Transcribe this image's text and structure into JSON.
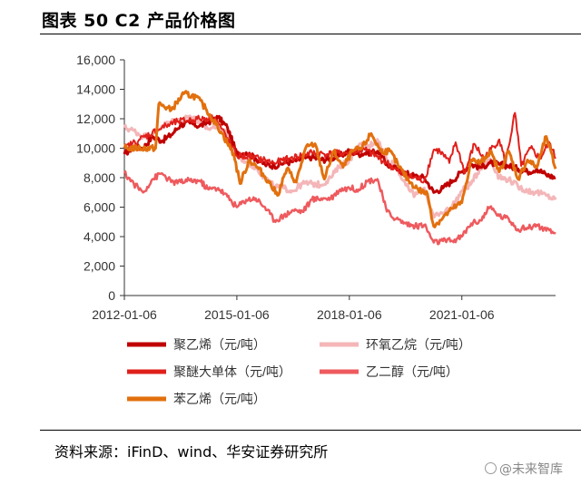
{
  "header": {
    "title": "图表 50 C2 产品价格图"
  },
  "footer": {
    "source": "资料来源：iFinD、wind、华安证券研究所",
    "watermark": "@未来智库"
  },
  "chart_data": {
    "type": "line",
    "title": "图表 50 C2 产品价格图",
    "xlabel": "",
    "ylabel": "",
    "ylim": [
      0,
      16000
    ],
    "yticks": [
      "0",
      "2,000",
      "4,000",
      "6,000",
      "8,000",
      "10,000",
      "12,000",
      "14,000",
      "16,000"
    ],
    "xlim": [
      "2012-01",
      "2023-07"
    ],
    "xticks": [
      "2012-01-06",
      "2015-01-06",
      "2018-01-06",
      "2021-01-06"
    ],
    "grid": false,
    "legend": "bottom",
    "colors": {
      "聚乙烯": "#C00000",
      "环氧乙烷": "#F4B6B8",
      "聚醚大单体": "#E0201B",
      "乙二醇": "#EE5A5E",
      "苯乙烯": "#E2700E"
    },
    "series": [
      {
        "name": "聚乙烯（元/吨）",
        "color": "#C00000",
        "width": 3,
        "points": [
          [
            "2012-01",
            9600
          ],
          [
            "2012-04",
            10100
          ],
          [
            "2012-07",
            10000
          ],
          [
            "2012-10",
            10800
          ],
          [
            "2013-01",
            10500
          ],
          [
            "2013-04",
            10900
          ],
          [
            "2013-07",
            11600
          ],
          [
            "2013-10",
            11700
          ],
          [
            "2014-01",
            11500
          ],
          [
            "2014-04",
            11800
          ],
          [
            "2014-07",
            12100
          ],
          [
            "2014-10",
            11400
          ],
          [
            "2015-01",
            9600
          ],
          [
            "2015-04",
            9700
          ],
          [
            "2015-07",
            9300
          ],
          [
            "2015-10",
            8900
          ],
          [
            "2016-01",
            8800
          ],
          [
            "2016-04",
            9000
          ],
          [
            "2016-07",
            9100
          ],
          [
            "2016-10",
            9300
          ],
          [
            "2017-01",
            9400
          ],
          [
            "2017-04",
            9200
          ],
          [
            "2017-07",
            9300
          ],
          [
            "2017-10",
            9500
          ],
          [
            "2018-01",
            9800
          ],
          [
            "2018-04",
            9600
          ],
          [
            "2018-07",
            9700
          ],
          [
            "2018-10",
            9800
          ],
          [
            "2019-01",
            8900
          ],
          [
            "2019-04",
            8600
          ],
          [
            "2019-07",
            8300
          ],
          [
            "2019-10",
            8100
          ],
          [
            "2020-01",
            8000
          ],
          [
            "2020-04",
            7000
          ],
          [
            "2020-07",
            7300
          ],
          [
            "2020-10",
            7800
          ],
          [
            "2021-01",
            8400
          ],
          [
            "2021-04",
            8900
          ],
          [
            "2021-07",
            8700
          ],
          [
            "2021-10",
            9000
          ],
          [
            "2022-01",
            8900
          ],
          [
            "2022-04",
            8800
          ],
          [
            "2022-07",
            8600
          ],
          [
            "2022-10",
            8400
          ],
          [
            "2023-01",
            8600
          ],
          [
            "2023-04",
            8200
          ],
          [
            "2023-07",
            8000
          ]
        ]
      },
      {
        "name": "环氧乙烷（元/吨）",
        "color": "#F4B6B8",
        "width": 3,
        "points": [
          [
            "2012-01",
            11400
          ],
          [
            "2012-04",
            11200
          ],
          [
            "2012-07",
            10800
          ],
          [
            "2012-10",
            10900
          ],
          [
            "2013-01",
            11500
          ],
          [
            "2013-04",
            11800
          ],
          [
            "2013-07",
            11900
          ],
          [
            "2013-10",
            12200
          ],
          [
            "2014-01",
            11700
          ],
          [
            "2014-04",
            11300
          ],
          [
            "2014-07",
            11600
          ],
          [
            "2014-10",
            11000
          ],
          [
            "2015-01",
            9500
          ],
          [
            "2015-04",
            9100
          ],
          [
            "2015-07",
            8700
          ],
          [
            "2015-10",
            8000
          ],
          [
            "2016-01",
            7400
          ],
          [
            "2016-04",
            7300
          ],
          [
            "2016-07",
            7100
          ],
          [
            "2016-10",
            7600
          ],
          [
            "2017-01",
            7600
          ],
          [
            "2017-04",
            7500
          ],
          [
            "2017-07",
            8000
          ],
          [
            "2017-10",
            8800
          ],
          [
            "2018-01",
            9200
          ],
          [
            "2018-04",
            10200
          ],
          [
            "2018-07",
            10100
          ],
          [
            "2018-10",
            10600
          ],
          [
            "2019-01",
            9200
          ],
          [
            "2019-04",
            8800
          ],
          [
            "2019-07",
            7500
          ],
          [
            "2019-10",
            6800
          ],
          [
            "2020-01",
            7300
          ],
          [
            "2020-04",
            5300
          ],
          [
            "2020-07",
            5600
          ],
          [
            "2020-10",
            6100
          ],
          [
            "2021-01",
            7100
          ],
          [
            "2021-04",
            7600
          ],
          [
            "2021-07",
            8700
          ],
          [
            "2021-10",
            9300
          ],
          [
            "2022-01",
            8000
          ],
          [
            "2022-04",
            7900
          ],
          [
            "2022-07",
            7400
          ],
          [
            "2022-10",
            7100
          ],
          [
            "2023-01",
            7000
          ],
          [
            "2023-04",
            6800
          ],
          [
            "2023-07",
            6500
          ]
        ]
      },
      {
        "name": "聚醚大单体（元/吨）",
        "color": "#E0201B",
        "width": 2,
        "points": [
          [
            "2012-01",
            10000
          ],
          [
            "2012-06",
            10600
          ],
          [
            "2013-01",
            11400
          ],
          [
            "2013-06",
            11800
          ],
          [
            "2014-01",
            12000
          ],
          [
            "2014-06",
            12100
          ],
          [
            "2015-01",
            9500
          ],
          [
            "2015-06",
            9400
          ],
          [
            "2016-01",
            9000
          ],
          [
            "2016-06",
            9300
          ],
          [
            "2017-01",
            9700
          ],
          [
            "2017-06",
            9600
          ],
          [
            "2018-01",
            9700
          ],
          [
            "2018-06",
            9900
          ],
          [
            "2019-01",
            9000
          ],
          [
            "2019-06",
            8200
          ],
          [
            "2020-01",
            7800
          ],
          [
            "2020-04",
            9900
          ],
          [
            "2020-06",
            9800
          ],
          [
            "2020-09",
            9000
          ],
          [
            "2020-11",
            10400
          ],
          [
            "2021-02",
            8300
          ],
          [
            "2021-05",
            10300
          ],
          [
            "2021-08",
            9300
          ],
          [
            "2022-01",
            10600
          ],
          [
            "2022-03",
            9000
          ],
          [
            "2022-06",
            12400
          ],
          [
            "2022-08",
            8800
          ],
          [
            "2022-11",
            10000
          ],
          [
            "2023-02",
            9300
          ],
          [
            "2023-05",
            10400
          ],
          [
            "2023-07",
            9300
          ]
        ]
      },
      {
        "name": "乙二醇（元/吨）",
        "color": "#EE5A5E",
        "width": 2.5,
        "points": [
          [
            "2012-01",
            8300
          ],
          [
            "2012-04",
            7600
          ],
          [
            "2012-07",
            7000
          ],
          [
            "2012-10",
            7900
          ],
          [
            "2013-01",
            8300
          ],
          [
            "2013-04",
            7700
          ],
          [
            "2013-07",
            7700
          ],
          [
            "2013-10",
            7800
          ],
          [
            "2014-01",
            7800
          ],
          [
            "2014-04",
            7200
          ],
          [
            "2014-07",
            7300
          ],
          [
            "2014-10",
            6700
          ],
          [
            "2015-01",
            6000
          ],
          [
            "2015-04",
            6500
          ],
          [
            "2015-07",
            6600
          ],
          [
            "2015-10",
            6000
          ],
          [
            "2016-01",
            5100
          ],
          [
            "2016-04",
            5400
          ],
          [
            "2016-07",
            5800
          ],
          [
            "2016-10",
            5700
          ],
          [
            "2017-01",
            6500
          ],
          [
            "2017-04",
            6600
          ],
          [
            "2017-07",
            6600
          ],
          [
            "2017-10",
            7200
          ],
          [
            "2018-01",
            7300
          ],
          [
            "2018-04",
            7200
          ],
          [
            "2018-07",
            7800
          ],
          [
            "2018-10",
            7900
          ],
          [
            "2019-01",
            5700
          ],
          [
            "2019-04",
            5200
          ],
          [
            "2019-07",
            4900
          ],
          [
            "2019-10",
            4700
          ],
          [
            "2020-01",
            4800
          ],
          [
            "2020-04",
            3600
          ],
          [
            "2020-07",
            3700
          ],
          [
            "2020-10",
            3700
          ],
          [
            "2021-01",
            4000
          ],
          [
            "2021-04",
            4900
          ],
          [
            "2021-07",
            5100
          ],
          [
            "2021-10",
            6000
          ],
          [
            "2022-01",
            5400
          ],
          [
            "2022-04",
            5200
          ],
          [
            "2022-07",
            4500
          ],
          [
            "2022-10",
            4600
          ],
          [
            "2023-01",
            4800
          ],
          [
            "2023-04",
            4400
          ],
          [
            "2023-07",
            4200
          ]
        ]
      },
      {
        "name": "苯乙烯（元/吨）",
        "color": "#E2700E",
        "width": 3,
        "points": [
          [
            "2012-01",
            10000
          ],
          [
            "2012-06",
            10000
          ],
          [
            "2012-11",
            10000
          ],
          [
            "2012-12",
            13000
          ],
          [
            "2013-04",
            12600
          ],
          [
            "2013-08",
            13700
          ],
          [
            "2013-12",
            13500
          ],
          [
            "2014-03",
            12700
          ],
          [
            "2014-08",
            11100
          ],
          [
            "2014-12",
            9600
          ],
          [
            "2015-02",
            7600
          ],
          [
            "2015-05",
            9200
          ],
          [
            "2015-08",
            8600
          ],
          [
            "2015-11",
            7800
          ],
          [
            "2016-02",
            6800
          ],
          [
            "2016-05",
            8600
          ],
          [
            "2016-08",
            7700
          ],
          [
            "2016-11",
            10000
          ],
          [
            "2017-02",
            10300
          ],
          [
            "2017-05",
            7900
          ],
          [
            "2017-08",
            9800
          ],
          [
            "2017-11",
            8700
          ],
          [
            "2018-02",
            9800
          ],
          [
            "2018-05",
            10000
          ],
          [
            "2018-08",
            11000
          ],
          [
            "2018-11",
            9800
          ],
          [
            "2019-02",
            9800
          ],
          [
            "2019-05",
            8700
          ],
          [
            "2019-08",
            7800
          ],
          [
            "2019-11",
            7200
          ],
          [
            "2020-02",
            6900
          ],
          [
            "2020-04",
            4700
          ],
          [
            "2020-07",
            5300
          ],
          [
            "2020-10",
            5900
          ],
          [
            "2021-01",
            6300
          ],
          [
            "2021-04",
            9200
          ],
          [
            "2021-07",
            9000
          ],
          [
            "2021-10",
            9800
          ],
          [
            "2022-01",
            8400
          ],
          [
            "2022-04",
            9800
          ],
          [
            "2022-07",
            7900
          ],
          [
            "2022-10",
            9200
          ],
          [
            "2023-01",
            8700
          ],
          [
            "2023-04",
            10800
          ],
          [
            "2023-07",
            8600
          ]
        ]
      }
    ]
  }
}
